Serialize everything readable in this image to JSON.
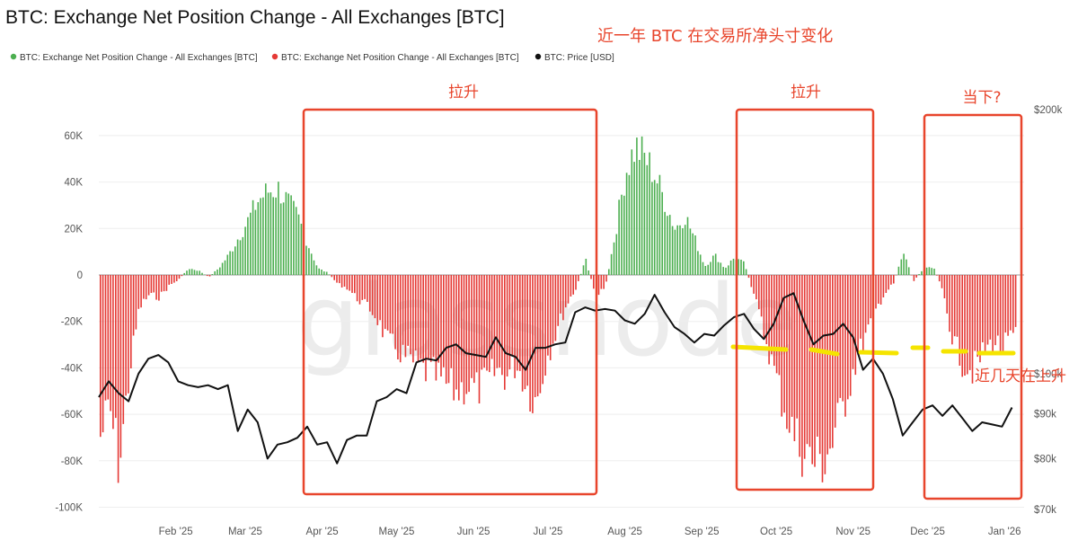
{
  "chart_data": {
    "type": "bar",
    "title": "BTC: Exchange Net Position Change - All Exchanges [BTC]",
    "watermark": "glassnode",
    "legend": [
      {
        "label": "BTC: Exchange Net Position Change - All Exchanges [BTC]",
        "color": "#4caf50"
      },
      {
        "label": "BTC: Exchange Net Position Change - All Exchanges [BTC]",
        "color": "#e53935"
      },
      {
        "label": "BTC: Price [USD]",
        "color": "#111111"
      }
    ],
    "legend_position": "top-left",
    "x_ticks": [
      "Feb '25",
      "Mar '25",
      "Apr '25",
      "May '25",
      "Jun '25",
      "Jul '25",
      "Aug '25",
      "Sep '25",
      "Oct '25",
      "Nov '25",
      "Dec '25",
      "Jan '26"
    ],
    "y_left_ticks": [
      "60K",
      "40K",
      "20K",
      "0",
      "-20K",
      "-40K",
      "-60K",
      "-80K",
      "-100K"
    ],
    "y_right_ticks": [
      "$200k",
      "$100k",
      "$90k",
      "$80k",
      "$70k"
    ],
    "y_left_range": [
      -100000,
      70000
    ],
    "y_right_range": [
      70000,
      200000
    ],
    "y_right_scale": "log",
    "net_position_change": [
      {
        "x": "2025-01-01",
        "y": -75000
      },
      {
        "x": "2025-01-05",
        "y": -60000
      },
      {
        "x": "2025-01-09",
        "y": -86000
      },
      {
        "x": "2025-01-13",
        "y": -45000
      },
      {
        "x": "2025-01-17",
        "y": -15000
      },
      {
        "x": "2025-01-21",
        "y": -9000
      },
      {
        "x": "2025-01-25",
        "y": -10000
      },
      {
        "x": "2025-01-29",
        "y": -5000
      },
      {
        "x": "2025-02-02",
        "y": -2000
      },
      {
        "x": "2025-02-06",
        "y": 3000
      },
      {
        "x": "2025-02-10",
        "y": 2000
      },
      {
        "x": "2025-02-14",
        "y": -1000
      },
      {
        "x": "2025-02-18",
        "y": 3000
      },
      {
        "x": "2025-02-22",
        "y": 9000
      },
      {
        "x": "2025-02-26",
        "y": 17000
      },
      {
        "x": "2025-03-02",
        "y": 25000
      },
      {
        "x": "2025-03-06",
        "y": 34000
      },
      {
        "x": "2025-03-10",
        "y": 38000
      },
      {
        "x": "2025-03-14",
        "y": 39000
      },
      {
        "x": "2025-03-18",
        "y": 33000
      },
      {
        "x": "2025-03-22",
        "y": 26000
      },
      {
        "x": "2025-03-26",
        "y": 14000
      },
      {
        "x": "2025-03-30",
        "y": 3000
      },
      {
        "x": "2025-04-03",
        "y": 1000
      },
      {
        "x": "2025-04-07",
        "y": -4000
      },
      {
        "x": "2025-04-11",
        "y": -6000
      },
      {
        "x": "2025-04-15",
        "y": -11000
      },
      {
        "x": "2025-04-19",
        "y": -14000
      },
      {
        "x": "2025-04-23",
        "y": -20000
      },
      {
        "x": "2025-04-27",
        "y": -30000
      },
      {
        "x": "2025-05-01",
        "y": -34000
      },
      {
        "x": "2025-05-05",
        "y": -38000
      },
      {
        "x": "2025-05-09",
        "y": -41000
      },
      {
        "x": "2025-05-13",
        "y": -44000
      },
      {
        "x": "2025-05-17",
        "y": -46000
      },
      {
        "x": "2025-05-21",
        "y": -50000
      },
      {
        "x": "2025-05-25",
        "y": -53000
      },
      {
        "x": "2025-05-29",
        "y": -50000
      },
      {
        "x": "2025-06-02",
        "y": -52000
      },
      {
        "x": "2025-06-06",
        "y": -49000
      },
      {
        "x": "2025-06-10",
        "y": -43000
      },
      {
        "x": "2025-06-14",
        "y": -46000
      },
      {
        "x": "2025-06-18",
        "y": -40000
      },
      {
        "x": "2025-06-22",
        "y": -50000
      },
      {
        "x": "2025-06-26",
        "y": -58000
      },
      {
        "x": "2025-06-30",
        "y": -38000
      },
      {
        "x": "2025-07-04",
        "y": -26000
      },
      {
        "x": "2025-07-08",
        "y": -14000
      },
      {
        "x": "2025-07-12",
        "y": -6000
      },
      {
        "x": "2025-07-16",
        "y": 7000
      },
      {
        "x": "2025-07-20",
        "y": -10000
      },
      {
        "x": "2025-07-24",
        "y": -5000
      },
      {
        "x": "2025-07-28",
        "y": 20000
      },
      {
        "x": "2025-08-01",
        "y": 47000
      },
      {
        "x": "2025-08-05",
        "y": 58000
      },
      {
        "x": "2025-08-09",
        "y": 53000
      },
      {
        "x": "2025-08-13",
        "y": 45000
      },
      {
        "x": "2025-08-17",
        "y": 33000
      },
      {
        "x": "2025-08-21",
        "y": 21000
      },
      {
        "x": "2025-08-25",
        "y": 27000
      },
      {
        "x": "2025-08-29",
        "y": 16000
      },
      {
        "x": "2025-09-02",
        "y": 4000
      },
      {
        "x": "2025-09-06",
        "y": 9000
      },
      {
        "x": "2025-09-10",
        "y": 3000
      },
      {
        "x": "2025-09-14",
        "y": 8000
      },
      {
        "x": "2025-09-18",
        "y": 5000
      },
      {
        "x": "2025-09-22",
        "y": -10000
      },
      {
        "x": "2025-09-26",
        "y": -27000
      },
      {
        "x": "2025-09-30",
        "y": -44000
      },
      {
        "x": "2025-10-04",
        "y": -60000
      },
      {
        "x": "2025-10-08",
        "y": -73000
      },
      {
        "x": "2025-10-12",
        "y": -80000
      },
      {
        "x": "2025-10-16",
        "y": -85000
      },
      {
        "x": "2025-10-20",
        "y": -84000
      },
      {
        "x": "2025-10-24",
        "y": -74000
      },
      {
        "x": "2025-10-28",
        "y": -58000
      },
      {
        "x": "2025-11-01",
        "y": -42000
      },
      {
        "x": "2025-11-05",
        "y": -30000
      },
      {
        "x": "2025-11-09",
        "y": -18000
      },
      {
        "x": "2025-11-13",
        "y": -9000
      },
      {
        "x": "2025-11-17",
        "y": -4000
      },
      {
        "x": "2025-11-21",
        "y": 11000
      },
      {
        "x": "2025-11-25",
        "y": -3000
      },
      {
        "x": "2025-11-29",
        "y": 3000
      },
      {
        "x": "2025-12-03",
        "y": 4000
      },
      {
        "x": "2025-12-07",
        "y": -8000
      },
      {
        "x": "2025-12-11",
        "y": -30000
      },
      {
        "x": "2025-12-15",
        "y": -40000
      },
      {
        "x": "2025-12-19",
        "y": -43000
      },
      {
        "x": "2025-12-23",
        "y": -36000
      },
      {
        "x": "2025-12-27",
        "y": -30000
      },
      {
        "x": "2025-12-31",
        "y": -33000
      },
      {
        "x": "2026-01-04",
        "y": -28000
      }
    ],
    "price_usd": [
      {
        "x": "2025-01-01",
        "y": 94000
      },
      {
        "x": "2025-01-05",
        "y": 98000
      },
      {
        "x": "2025-01-09",
        "y": 95000
      },
      {
        "x": "2025-01-13",
        "y": 93000
      },
      {
        "x": "2025-01-17",
        "y": 100000
      },
      {
        "x": "2025-01-21",
        "y": 104000
      },
      {
        "x": "2025-01-25",
        "y": 105000
      },
      {
        "x": "2025-01-29",
        "y": 103000
      },
      {
        "x": "2025-02-02",
        "y": 98000
      },
      {
        "x": "2025-02-06",
        "y": 97000
      },
      {
        "x": "2025-02-10",
        "y": 96500
      },
      {
        "x": "2025-02-14",
        "y": 97000
      },
      {
        "x": "2025-02-18",
        "y": 96000
      },
      {
        "x": "2025-02-22",
        "y": 97000
      },
      {
        "x": "2025-02-26",
        "y": 86000
      },
      {
        "x": "2025-03-02",
        "y": 91000
      },
      {
        "x": "2025-03-06",
        "y": 88000
      },
      {
        "x": "2025-03-10",
        "y": 80000
      },
      {
        "x": "2025-03-14",
        "y": 83000
      },
      {
        "x": "2025-03-18",
        "y": 83500
      },
      {
        "x": "2025-03-22",
        "y": 84500
      },
      {
        "x": "2025-03-26",
        "y": 87000
      },
      {
        "x": "2025-03-30",
        "y": 83000
      },
      {
        "x": "2025-04-03",
        "y": 83500
      },
      {
        "x": "2025-04-07",
        "y": 79000
      },
      {
        "x": "2025-04-11",
        "y": 84000
      },
      {
        "x": "2025-04-15",
        "y": 85000
      },
      {
        "x": "2025-04-19",
        "y": 85000
      },
      {
        "x": "2025-04-23",
        "y": 93000
      },
      {
        "x": "2025-04-27",
        "y": 94000
      },
      {
        "x": "2025-05-01",
        "y": 96000
      },
      {
        "x": "2025-05-05",
        "y": 95000
      },
      {
        "x": "2025-05-09",
        "y": 103000
      },
      {
        "x": "2025-05-13",
        "y": 104000
      },
      {
        "x": "2025-05-17",
        "y": 103500
      },
      {
        "x": "2025-05-21",
        "y": 107000
      },
      {
        "x": "2025-05-25",
        "y": 108000
      },
      {
        "x": "2025-05-29",
        "y": 105500
      },
      {
        "x": "2025-06-02",
        "y": 105000
      },
      {
        "x": "2025-06-06",
        "y": 104500
      },
      {
        "x": "2025-06-10",
        "y": 110000
      },
      {
        "x": "2025-06-14",
        "y": 105500
      },
      {
        "x": "2025-06-18",
        "y": 104500
      },
      {
        "x": "2025-06-22",
        "y": 101000
      },
      {
        "x": "2025-06-26",
        "y": 107000
      },
      {
        "x": "2025-06-30",
        "y": 107000
      },
      {
        "x": "2025-07-04",
        "y": 108000
      },
      {
        "x": "2025-07-08",
        "y": 108500
      },
      {
        "x": "2025-07-12",
        "y": 117500
      },
      {
        "x": "2025-07-16",
        "y": 119000
      },
      {
        "x": "2025-07-20",
        "y": 118000
      },
      {
        "x": "2025-07-24",
        "y": 118500
      },
      {
        "x": "2025-07-28",
        "y": 118000
      },
      {
        "x": "2025-08-01",
        "y": 115000
      },
      {
        "x": "2025-08-05",
        "y": 114000
      },
      {
        "x": "2025-08-09",
        "y": 117000
      },
      {
        "x": "2025-08-13",
        "y": 123000
      },
      {
        "x": "2025-08-17",
        "y": 117500
      },
      {
        "x": "2025-08-21",
        "y": 113000
      },
      {
        "x": "2025-08-25",
        "y": 111000
      },
      {
        "x": "2025-08-29",
        "y": 108500
      },
      {
        "x": "2025-09-02",
        "y": 111000
      },
      {
        "x": "2025-09-06",
        "y": 110500
      },
      {
        "x": "2025-09-10",
        "y": 113500
      },
      {
        "x": "2025-09-14",
        "y": 116000
      },
      {
        "x": "2025-09-18",
        "y": 117000
      },
      {
        "x": "2025-09-22",
        "y": 112500
      },
      {
        "x": "2025-09-26",
        "y": 109500
      },
      {
        "x": "2025-09-30",
        "y": 114000
      },
      {
        "x": "2025-10-04",
        "y": 122000
      },
      {
        "x": "2025-10-08",
        "y": 123500
      },
      {
        "x": "2025-10-12",
        "y": 115000
      },
      {
        "x": "2025-10-16",
        "y": 108000
      },
      {
        "x": "2025-10-20",
        "y": 110500
      },
      {
        "x": "2025-10-24",
        "y": 111000
      },
      {
        "x": "2025-10-28",
        "y": 114000
      },
      {
        "x": "2025-11-01",
        "y": 110000
      },
      {
        "x": "2025-11-05",
        "y": 101000
      },
      {
        "x": "2025-11-09",
        "y": 104000
      },
      {
        "x": "2025-11-13",
        "y": 100000
      },
      {
        "x": "2025-11-17",
        "y": 93500
      },
      {
        "x": "2025-11-21",
        "y": 85000
      },
      {
        "x": "2025-11-25",
        "y": 88000
      },
      {
        "x": "2025-11-29",
        "y": 91000
      },
      {
        "x": "2025-12-03",
        "y": 92000
      },
      {
        "x": "2025-12-07",
        "y": 89500
      },
      {
        "x": "2025-12-11",
        "y": 92000
      },
      {
        "x": "2025-12-15",
        "y": 89000
      },
      {
        "x": "2025-12-19",
        "y": 86000
      },
      {
        "x": "2025-12-23",
        "y": 88000
      },
      {
        "x": "2025-12-27",
        "y": 87500
      },
      {
        "x": "2025-12-31",
        "y": 87000
      },
      {
        "x": "2026-01-04",
        "y": 91500
      }
    ],
    "colors": {
      "inflow_positive": "#4caf50",
      "outflow_negative": "#e53935",
      "price": "#111111",
      "annotation": "#e8452c",
      "marker": "#f5e400"
    },
    "annotations": {
      "headline": "近一年 BTC 在交易所净头寸变化",
      "boxes": [
        {
          "label": "拉升",
          "from": "2025-03-28",
          "to": "2025-07-19"
        },
        {
          "label": "拉升",
          "from": "2025-09-26",
          "to": "2025-11-17"
        },
        {
          "label": "当下?",
          "from": "2025-11-30",
          "to": "2026-01-04"
        }
      ],
      "side_note": "近几天在上升"
    }
  }
}
